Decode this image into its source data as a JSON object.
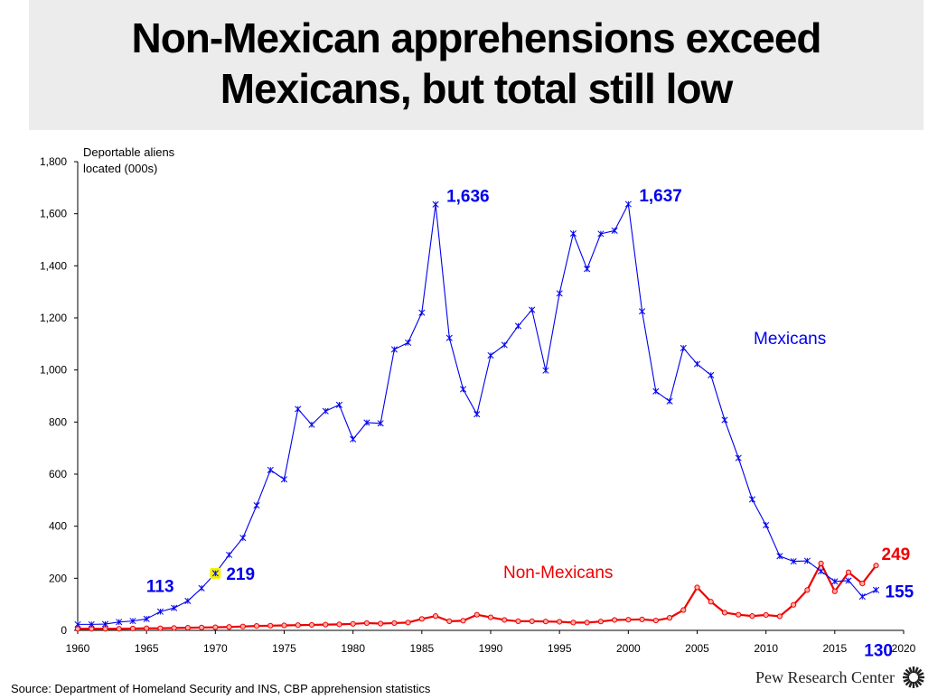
{
  "title_lines": [
    "Non-Mexican apprehensions exceed",
    "Mexicans, but total still low"
  ],
  "source": "Source: Department of Homeland Security and INS, CBP apprehension statistics",
  "brand": "Pew Research Center",
  "colors": {
    "mexicans": "#0000ee",
    "non_mexicans": "#ee0000",
    "highlight": "#f2f200"
  },
  "chart_data": {
    "type": "line",
    "title": "Non-Mexican apprehensions exceed Mexicans, but total still low",
    "ylabel": "Deportable aliens located (000s)",
    "ylabel_lines": [
      "Deportable aliens",
      "located (000s)"
    ],
    "xlabel": "",
    "xlim": [
      1960,
      2020
    ],
    "ylim": [
      0,
      1800
    ],
    "xticks": [
      1960,
      1965,
      1970,
      1975,
      1980,
      1985,
      1990,
      1995,
      2000,
      2005,
      2010,
      2015,
      2020
    ],
    "yticks": [
      0,
      200,
      400,
      600,
      800,
      1000,
      1200,
      1400,
      1600,
      1800
    ],
    "ytick_labels": [
      "0",
      "200",
      "400",
      "600",
      "800",
      "1,000",
      "1,200",
      "1,400",
      "1,600",
      "1,800"
    ],
    "x": [
      1960,
      1961,
      1962,
      1963,
      1964,
      1965,
      1966,
      1967,
      1968,
      1969,
      1970,
      1971,
      1972,
      1973,
      1974,
      1975,
      1976,
      1977,
      1978,
      1979,
      1980,
      1981,
      1982,
      1983,
      1984,
      1985,
      1986,
      1987,
      1988,
      1989,
      1990,
      1991,
      1992,
      1993,
      1994,
      1995,
      1996,
      1997,
      1998,
      1999,
      2000,
      2001,
      2002,
      2003,
      2004,
      2005,
      2006,
      2007,
      2008,
      2009,
      2010,
      2011,
      2012,
      2013,
      2014,
      2015,
      2016,
      2017,
      2018
    ],
    "series": [
      {
        "name": "Mexicans",
        "label": "Mexicans",
        "values": [
          23,
          23,
          24,
          32,
          36,
          44,
          72,
          86,
          113,
          162,
          219,
          290,
          355,
          480,
          616,
          580,
          850,
          790,
          842,
          866,
          734,
          798,
          795,
          1079,
          1105,
          1220,
          1636,
          1123,
          926,
          830,
          1056,
          1096,
          1169,
          1231,
          998,
          1294,
          1524,
          1388,
          1523,
          1535,
          1637,
          1225,
          918,
          880,
          1084,
          1023,
          980,
          808,
          662,
          503,
          404,
          285,
          265,
          267,
          227,
          188,
          191,
          130,
          155
        ]
      },
      {
        "name": "Non-Mexicans",
        "label": "Non-Mexicans",
        "values": [
          6,
          6,
          6,
          6,
          7,
          8,
          8,
          9,
          10,
          11,
          12,
          13,
          15,
          17,
          18,
          19,
          20,
          21,
          22,
          23,
          25,
          28,
          26,
          28,
          30,
          44,
          55,
          35,
          37,
          60,
          50,
          40,
          35,
          35,
          34,
          33,
          30,
          30,
          34,
          40,
          41,
          42,
          38,
          48,
          78,
          165,
          110,
          68,
          60,
          55,
          59,
          54,
          98,
          155,
          257,
          150,
          223,
          180,
          249
        ]
      }
    ],
    "annotations": [
      {
        "text": "113",
        "x": 1968,
        "y": 113,
        "series": "Mexicans"
      },
      {
        "text": "219",
        "x": 1970,
        "y": 219,
        "series": "Mexicans"
      },
      {
        "text": "1,636",
        "x": 1986,
        "y": 1636,
        "series": "Mexicans"
      },
      {
        "text": "1,637",
        "x": 2000,
        "y": 1637,
        "series": "Mexicans"
      },
      {
        "text": "130",
        "x": 2017,
        "y": 130,
        "series": "Mexicans"
      },
      {
        "text": "155",
        "x": 2018,
        "y": 155,
        "series": "Mexicans"
      },
      {
        "text": "249",
        "x": 2018,
        "y": 249,
        "series": "Non-Mexicans"
      }
    ],
    "highlight": {
      "x": 1970,
      "y": 219
    }
  }
}
